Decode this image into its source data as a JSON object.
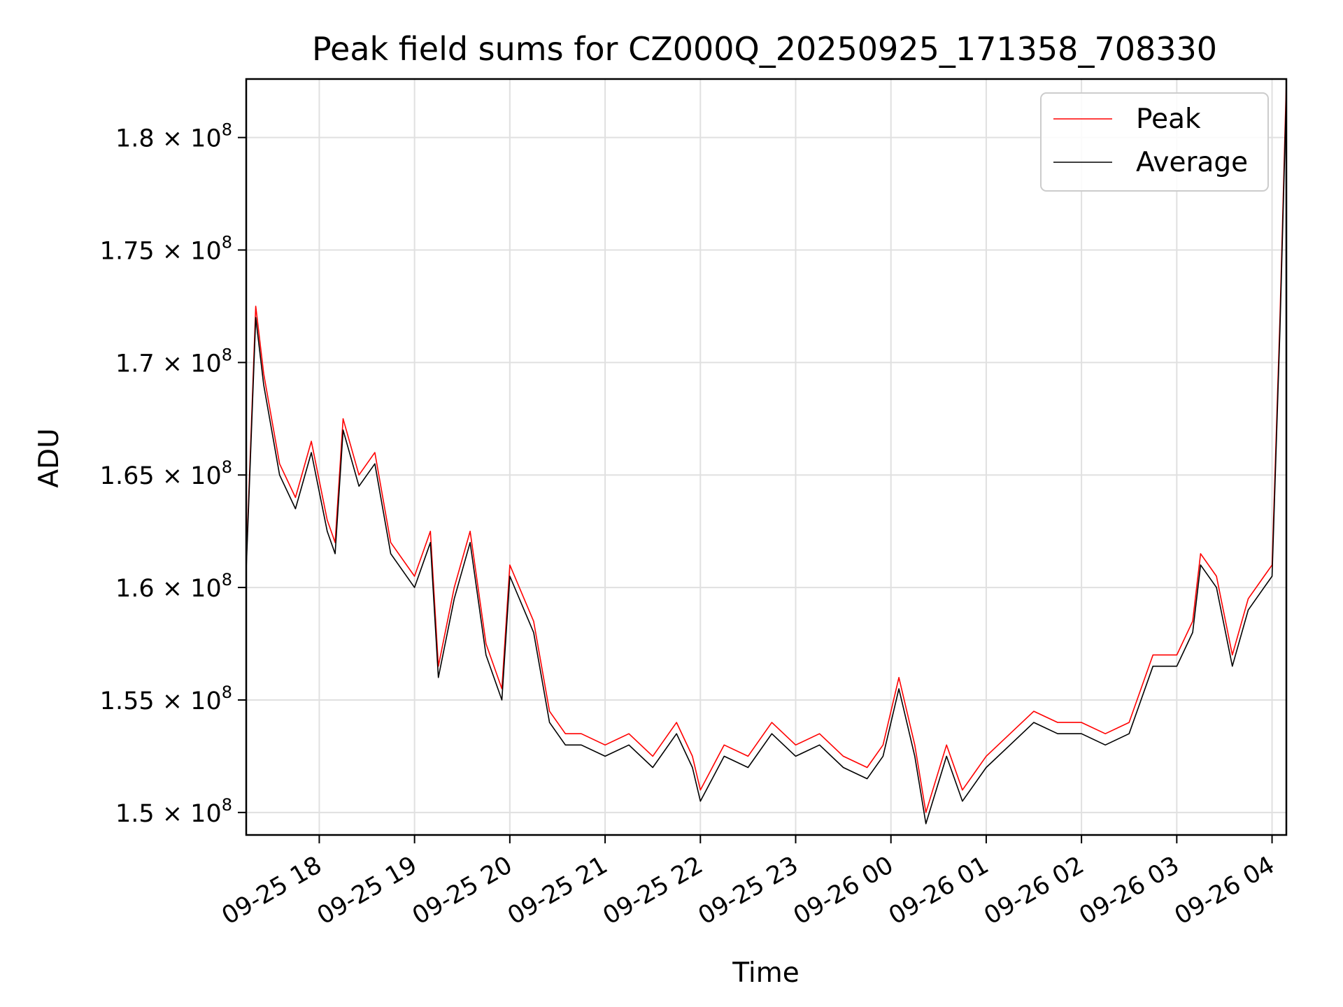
{
  "chart_data": {
    "type": "line",
    "title": "Peak field sums for CZ000Q_20250925_171358_708330",
    "xlabel": "Time",
    "ylabel": "ADU",
    "x_range": [
      "2025-09-25 17:14",
      "2025-09-26 04:09"
    ],
    "ylim": [
      149000000,
      182600000
    ],
    "grid": true,
    "legend_position": "upper right",
    "x_ticks": [
      "09-25 18",
      "09-25 19",
      "09-25 20",
      "09-25 21",
      "09-25 22",
      "09-25 23",
      "09-26 00",
      "09-26 01",
      "09-26 02",
      "09-26 03",
      "09-26 04"
    ],
    "y_ticks": [
      {
        "value": 150000000,
        "mantissa": "1.5"
      },
      {
        "value": 155000000,
        "mantissa": "1.55"
      },
      {
        "value": 160000000,
        "mantissa": "1.6"
      },
      {
        "value": 165000000,
        "mantissa": "1.65"
      },
      {
        "value": 170000000,
        "mantissa": "1.7"
      },
      {
        "value": 175000000,
        "mantissa": "1.75"
      },
      {
        "value": 180000000,
        "mantissa": "1.8"
      }
    ],
    "y_tick_suffix": "× 10",
    "y_tick_exponent": "8",
    "x": [
      "2025-09-25 17:14",
      "2025-09-25 17:20",
      "2025-09-25 17:25",
      "2025-09-25 17:35",
      "2025-09-25 17:45",
      "2025-09-25 17:55",
      "2025-09-25 18:05",
      "2025-09-25 18:10",
      "2025-09-25 18:15",
      "2025-09-25 18:25",
      "2025-09-25 18:35",
      "2025-09-25 18:45",
      "2025-09-25 19:00",
      "2025-09-25 19:10",
      "2025-09-25 19:15",
      "2025-09-25 19:25",
      "2025-09-25 19:35",
      "2025-09-25 19:45",
      "2025-09-25 19:55",
      "2025-09-25 20:00",
      "2025-09-25 20:15",
      "2025-09-25 20:25",
      "2025-09-25 20:35",
      "2025-09-25 20:45",
      "2025-09-25 21:00",
      "2025-09-25 21:15",
      "2025-09-25 21:30",
      "2025-09-25 21:45",
      "2025-09-25 21:55",
      "2025-09-25 22:00",
      "2025-09-25 22:15",
      "2025-09-25 22:30",
      "2025-09-25 22:45",
      "2025-09-25 23:00",
      "2025-09-25 23:15",
      "2025-09-25 23:30",
      "2025-09-25 23:45",
      "2025-09-25 23:55",
      "2025-09-26 00:05",
      "2025-09-26 00:15",
      "2025-09-26 00:22",
      "2025-09-26 00:35",
      "2025-09-26 00:45",
      "2025-09-26 01:00",
      "2025-09-26 01:15",
      "2025-09-26 01:30",
      "2025-09-26 01:45",
      "2025-09-26 02:00",
      "2025-09-26 02:15",
      "2025-09-26 02:30",
      "2025-09-26 02:45",
      "2025-09-26 03:00",
      "2025-09-26 03:10",
      "2025-09-26 03:15",
      "2025-09-26 03:25",
      "2025-09-26 03:35",
      "2025-09-26 03:45",
      "2025-09-26 03:55",
      "2025-09-26 04:00",
      "2025-09-26 04:05",
      "2025-09-26 04:09"
    ],
    "series": [
      {
        "name": "Peak",
        "color": "#ff0000",
        "values": [
          161000000,
          172500000,
          169500000,
          165500000,
          164000000,
          166500000,
          163000000,
          162000000,
          167500000,
          165000000,
          166000000,
          162000000,
          160500000,
          162500000,
          156500000,
          160000000,
          162500000,
          157500000,
          155500000,
          161000000,
          158500000,
          154500000,
          153500000,
          153500000,
          153000000,
          153500000,
          152500000,
          154000000,
          152500000,
          151000000,
          153000000,
          152500000,
          154000000,
          153000000,
          153500000,
          152500000,
          152000000,
          153000000,
          156000000,
          153000000,
          150000000,
          153000000,
          151000000,
          152500000,
          153500000,
          154500000,
          154000000,
          154000000,
          153500000,
          154000000,
          157000000,
          157000000,
          158500000,
          161500000,
          160500000,
          157000000,
          159500000,
          160500000,
          161000000,
          172000000,
          182500000
        ]
      },
      {
        "name": "Average",
        "color": "#000000",
        "values": [
          160800000,
          172000000,
          169000000,
          165000000,
          163500000,
          166000000,
          162500000,
          161500000,
          167000000,
          164500000,
          165500000,
          161500000,
          160000000,
          162000000,
          156000000,
          159500000,
          162000000,
          157000000,
          155000000,
          160500000,
          158000000,
          154000000,
          153000000,
          153000000,
          152500000,
          153000000,
          152000000,
          153500000,
          152000000,
          150500000,
          152500000,
          152000000,
          153500000,
          152500000,
          153000000,
          152000000,
          151500000,
          152500000,
          155500000,
          152500000,
          149500000,
          152500000,
          150500000,
          152000000,
          153000000,
          154000000,
          153500000,
          153500000,
          153000000,
          153500000,
          156500000,
          156500000,
          158000000,
          161000000,
          160000000,
          156500000,
          159000000,
          160000000,
          160500000,
          171500000,
          182000000
        ]
      }
    ]
  }
}
